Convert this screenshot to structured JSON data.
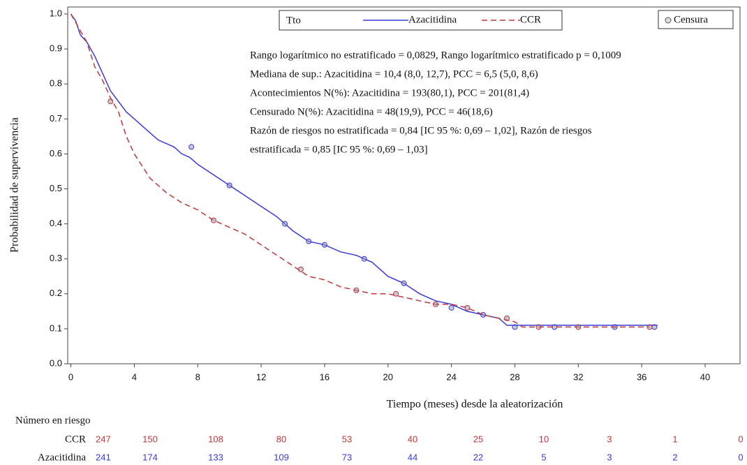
{
  "chart_data": {
    "type": "line",
    "step": true,
    "xlabel": "Tiempo (meses) desde la aleatorización",
    "ylabel": "Probabilidad de supervivencia",
    "xlim": [
      -0.2,
      42.2
    ],
    "ylim": [
      0,
      1.02
    ],
    "xticks": [
      0,
      4,
      8,
      12,
      16,
      20,
      24,
      28,
      32,
      36,
      40
    ],
    "yticks": [
      {
        "value": 0,
        "label": "0.0"
      },
      0.1,
      0.2,
      0.3,
      0.4,
      0.5,
      0.6,
      0.7,
      0.8,
      0.9,
      {
        "value": 1,
        "label": "1.0"
      }
    ],
    "legend_title": "Tto",
    "censor_label": "Censura",
    "series": [
      {
        "name": "Azacitidina",
        "color": "#3a3ad8",
        "dash": false,
        "x": [
          0,
          0.3,
          0.6,
          1,
          1.5,
          2,
          2.5,
          3,
          3.5,
          4,
          4.5,
          5,
          5.5,
          6,
          6.5,
          7,
          7.5,
          8,
          9,
          10,
          11,
          12,
          13,
          14,
          15,
          16,
          17,
          18,
          19,
          20,
          21,
          22,
          23,
          24,
          25,
          26,
          27,
          27.5,
          37
        ],
        "values": [
          1.0,
          0.98,
          0.94,
          0.92,
          0.88,
          0.83,
          0.78,
          0.75,
          0.72,
          0.7,
          0.68,
          0.66,
          0.64,
          0.63,
          0.62,
          0.6,
          0.59,
          0.57,
          0.54,
          0.51,
          0.48,
          0.45,
          0.42,
          0.38,
          0.35,
          0.34,
          0.32,
          0.31,
          0.29,
          0.25,
          0.23,
          0.2,
          0.18,
          0.17,
          0.15,
          0.14,
          0.13,
          0.11,
          0.11
        ],
        "censored": {
          "x": [
            7.6,
            10,
            13.5,
            15,
            16,
            18.5,
            21,
            24,
            26,
            28,
            30.5,
            34.3,
            36.8
          ],
          "y": [
            0.62,
            0.51,
            0.4,
            0.35,
            0.34,
            0.3,
            0.23,
            0.16,
            0.14,
            0.105,
            0.105,
            0.105,
            0.105
          ]
        },
        "at_risk": [
          241,
          174,
          133,
          109,
          73,
          44,
          22,
          5,
          3,
          2,
          0
        ]
      },
      {
        "name": "CCR",
        "color": "#c0353a",
        "dash": true,
        "x": [
          0,
          0.5,
          1,
          1.5,
          2,
          2.5,
          3,
          3.5,
          4,
          5,
          6,
          7,
          8,
          9,
          10,
          11,
          12,
          13,
          14,
          15,
          16,
          17,
          18,
          19,
          20,
          21,
          22,
          23,
          24,
          25,
          26,
          27,
          28,
          28.5,
          36.5
        ],
        "values": [
          1.0,
          0.96,
          0.92,
          0.85,
          0.81,
          0.76,
          0.72,
          0.65,
          0.6,
          0.53,
          0.49,
          0.46,
          0.44,
          0.41,
          0.39,
          0.37,
          0.34,
          0.31,
          0.28,
          0.25,
          0.24,
          0.22,
          0.21,
          0.2,
          0.2,
          0.19,
          0.18,
          0.17,
          0.17,
          0.16,
          0.14,
          0.13,
          0.12,
          0.105,
          0.105
        ],
        "censored": {
          "x": [
            2.5,
            9,
            14.5,
            18,
            20.5,
            23,
            25,
            27.5,
            29.5,
            32,
            36.5
          ],
          "y": [
            0.75,
            0.41,
            0.27,
            0.21,
            0.2,
            0.17,
            0.16,
            0.13,
            0.105,
            0.105,
            0.105
          ]
        },
        "at_risk": [
          247,
          150,
          108,
          80,
          53,
          40,
          25,
          10,
          3,
          1,
          0
        ]
      }
    ],
    "annotations": [
      "Rango logarítmico no estratificado = 0,0829, Rango logarítmico estratificado p = 0,1009",
      "Mediana de sup.: Azacitidina = 10,4 (8,0, 12,7), PCC = 6,5 (5,0, 8,6)",
      "Acontecimientos N(%): Azacitidina = 193(80,1), PCC = 201(81,4)",
      "Censurado N(%): Azacitidina = 48(19,9), PCC = 46(18,6)",
      "Razón de riesgos no estratificada = 0,84 [IC 95 %: 0,69 – 1,02], Razón de riesgos",
      "estratificada = 0,85 [IC 95 %: 0,69 – 1,03]"
    ],
    "at_risk_title": "Número en riesgo"
  }
}
